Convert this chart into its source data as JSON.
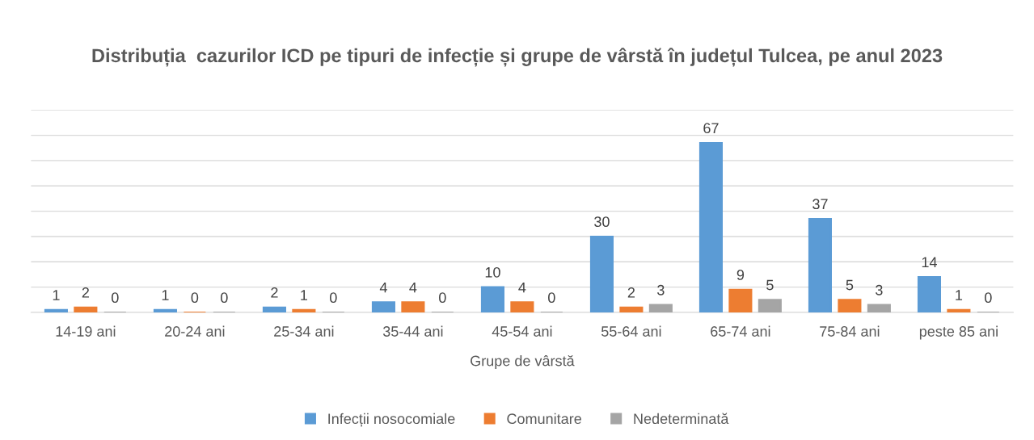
{
  "chart_data": {
    "type": "bar",
    "title": "Distribuția  cazurilor ICD pe tipuri de infecție și grupe de vârstă în județul Tulcea, pe anul 2023",
    "xlabel": "Grupe de vârstă",
    "categories": [
      "14-19 ani",
      "20-24 ani",
      "25-34 ani",
      "35-44 ani",
      "45-54 ani",
      "55-64 ani",
      "65-74 ani",
      "75-84 ani",
      "peste 85 ani"
    ],
    "series": [
      {
        "name": "Infecții nosocomiale",
        "color": "#5b9bd5",
        "values": [
          1,
          1,
          2,
          4,
          10,
          30,
          67,
          37,
          14
        ]
      },
      {
        "name": "Comunitare",
        "color": "#ed7d31",
        "values": [
          2,
          0,
          1,
          4,
          4,
          2,
          9,
          5,
          1
        ]
      },
      {
        "name": "Nedeterminată",
        "color": "#a5a5a5",
        "values": [
          0,
          0,
          0,
          0,
          0,
          3,
          5,
          3,
          0
        ]
      }
    ],
    "ylim": [
      0,
      80
    ],
    "yticks": [
      {
        "value": 0,
        "label": null
      },
      {
        "value": 10,
        "label": null
      },
      {
        "value": 20,
        "label": null
      },
      {
        "value": 30,
        "label": null
      },
      {
        "value": 40,
        "label": null
      },
      {
        "value": 50,
        "label": null
      },
      {
        "value": 60,
        "label": null
      },
      {
        "value": 70,
        "label": null
      },
      {
        "value": 80,
        "label": null
      }
    ],
    "tick_labels": "x",
    "grid": "y",
    "data_labels": true,
    "legend": "bottom"
  }
}
